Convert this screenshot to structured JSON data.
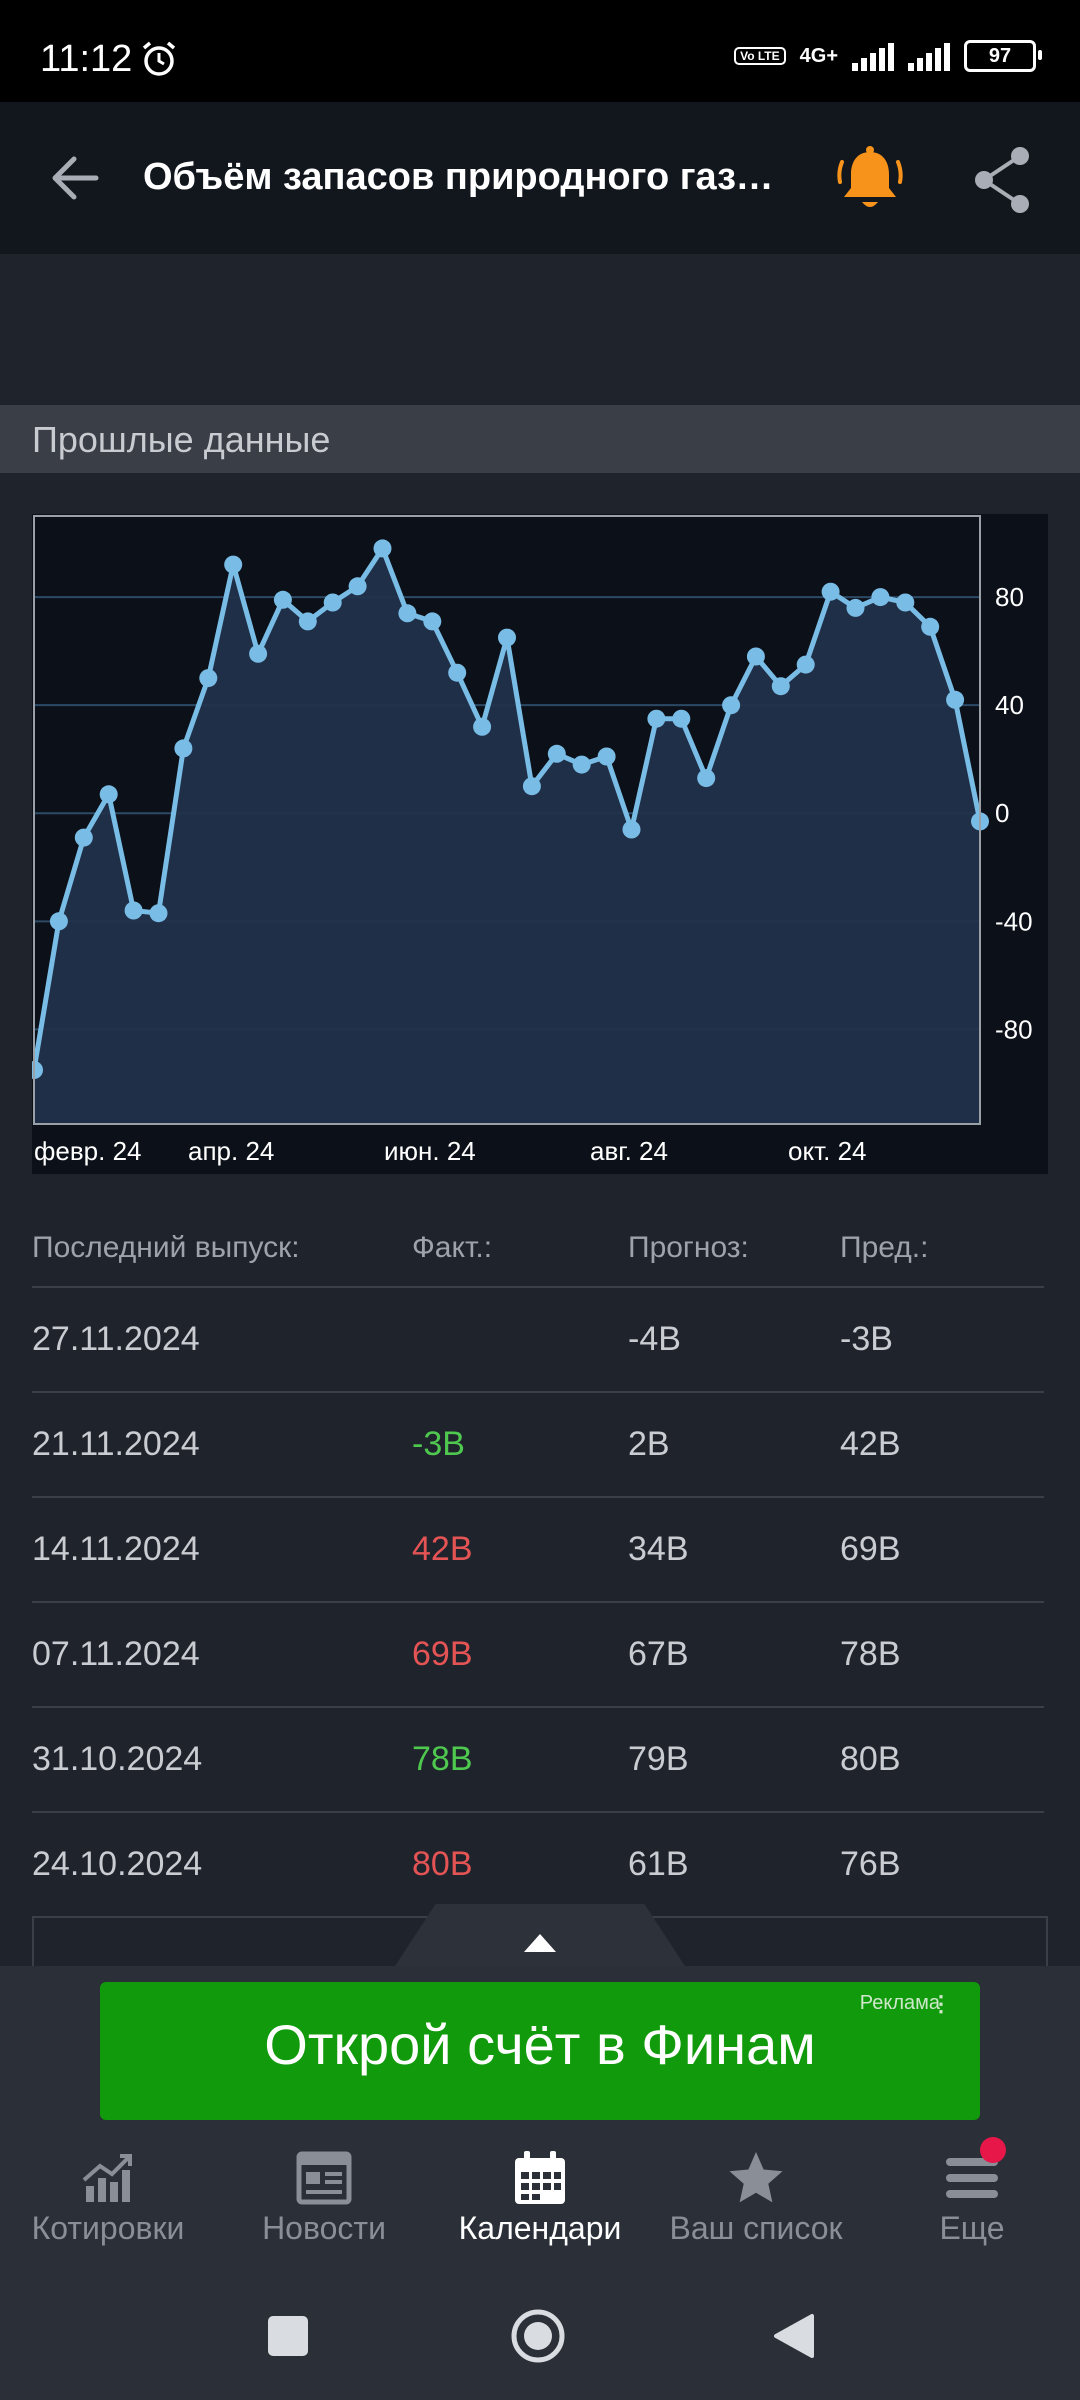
{
  "status": {
    "time": "11:12",
    "volte": "Vo LTE",
    "network": "4G+",
    "battery": "97"
  },
  "header": {
    "title": "Объём запасов природного газа..."
  },
  "section": {
    "title": "Прошлые данные"
  },
  "chart_data": {
    "type": "area",
    "title": "",
    "x_tick_labels": [
      "февр. 24",
      "апр. 24",
      "июн. 24",
      "авг. 24",
      "окт. 24"
    ],
    "y_ticks": [
      80,
      40,
      0,
      -40,
      -80
    ],
    "ylim": [
      -115,
      110
    ],
    "grid": true,
    "y_axis_position": "right",
    "values": [
      -95,
      -40,
      -9,
      7,
      -36,
      -37,
      24,
      50,
      92,
      59,
      79,
      71,
      78,
      84,
      98,
      74,
      71,
      52,
      32,
      65,
      10,
      22,
      18,
      21,
      -6,
      35,
      35,
      13,
      40,
      58,
      47,
      55,
      82,
      76,
      80,
      78,
      69,
      42,
      -3
    ],
    "colors": {
      "line": "#79bde6",
      "fill": "#22314b",
      "plot_bg": "#0c1018",
      "grid": "#2c4a66"
    }
  },
  "table": {
    "headers": {
      "release": "Последний выпуск:",
      "actual": "Факт.:",
      "forecast": "Прогноз:",
      "previous": "Пред.:"
    },
    "rows": [
      {
        "date": "27.11.2024",
        "actual": "",
        "forecast": "-4B",
        "previous": "-3B"
      },
      {
        "date": "21.11.2024",
        "actual": "-3B",
        "forecast": "2B",
        "previous": "42B"
      },
      {
        "date": "14.11.2024",
        "actual": "42B",
        "forecast": "34B",
        "previous": "69B"
      },
      {
        "date": "07.11.2024",
        "actual": "69B",
        "forecast": "67B",
        "previous": "78B"
      },
      {
        "date": "31.10.2024",
        "actual": "78B",
        "forecast": "79B",
        "previous": "80B"
      },
      {
        "date": "24.10.2024",
        "actual": "80B",
        "forecast": "61B",
        "previous": "76B"
      }
    ]
  },
  "ad": {
    "text": "Открой счёт в Финам",
    "label": "Реклама",
    "menu": "⋮"
  },
  "tabs": [
    {
      "label": "Котировки",
      "icon": "chart-icon"
    },
    {
      "label": "Новости",
      "icon": "news-icon"
    },
    {
      "label": "Календари",
      "icon": "calendar-icon"
    },
    {
      "label": "Ваш список",
      "icon": "star-icon"
    },
    {
      "label": "Еще",
      "icon": "menu-icon"
    }
  ],
  "colors": {
    "accent_bell": "#f7931a",
    "positive": "#4ec84e",
    "negative": "#e55455",
    "ad_green": "#119a0b"
  }
}
